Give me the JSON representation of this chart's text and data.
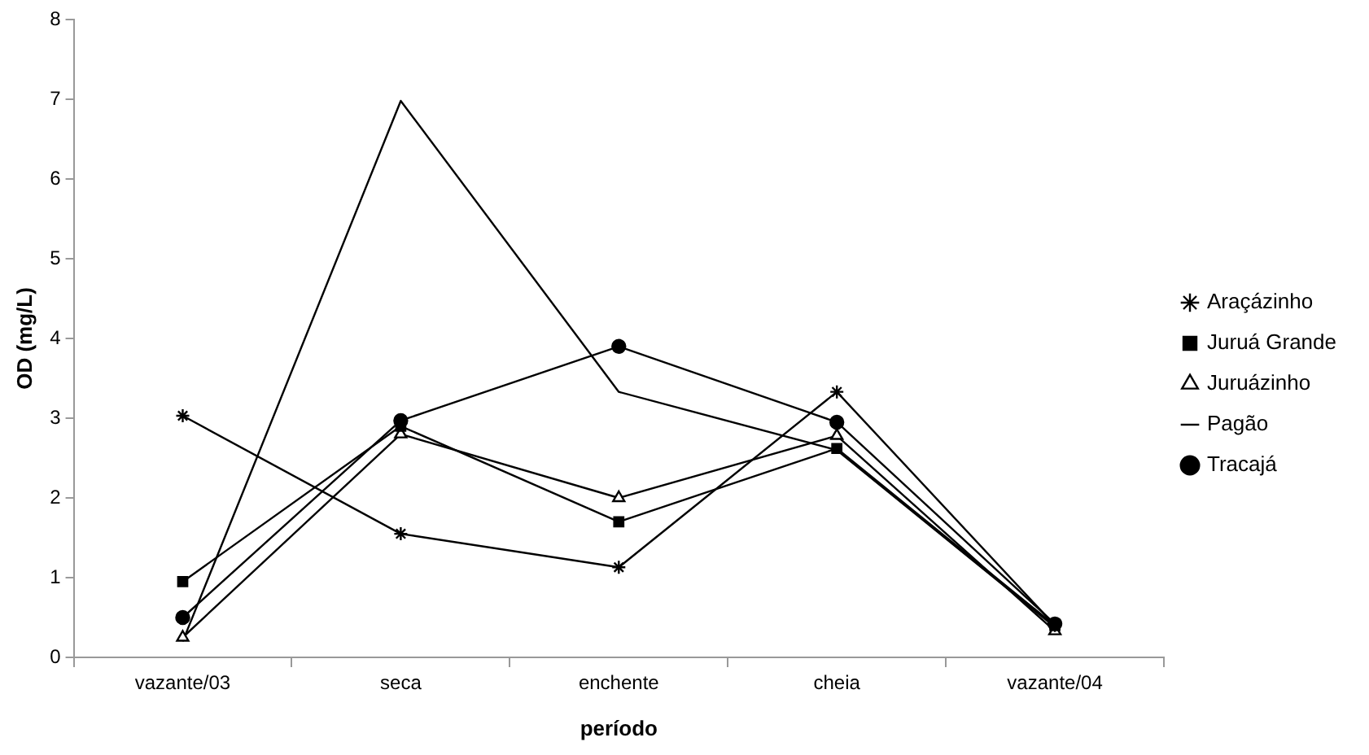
{
  "chart_data": {
    "type": "line",
    "xlabel": "período",
    "ylabel": "OD (mg/L)",
    "categories": [
      "vazante/03",
      "seca",
      "enchente",
      "cheia",
      "vazante/04"
    ],
    "ylim": [
      0,
      8
    ],
    "yticks": [
      0,
      1,
      2,
      3,
      4,
      5,
      6,
      7,
      8
    ],
    "grid": false,
    "legend": "right",
    "line_style": "solid",
    "series": [
      {
        "name": "Araçázinho",
        "color": "#000000",
        "marker": "cross",
        "values": [
          3.03,
          1.55,
          1.13,
          3.33,
          0.4
        ]
      },
      {
        "name": "Juruá Grande",
        "color": "#000000",
        "marker": "square",
        "values": [
          0.95,
          2.9,
          1.7,
          2.62,
          0.4
        ]
      },
      {
        "name": "Juruázinho",
        "color": "#000000",
        "marker": "triangle",
        "values": [
          0.25,
          2.8,
          2.0,
          2.78,
          0.33
        ]
      },
      {
        "name": "Pagão",
        "color": "#000000",
        "marker": "none",
        "values": [
          0.2,
          6.98,
          3.33,
          2.6,
          0.38
        ]
      },
      {
        "name": "Tracajá",
        "color": "#000000",
        "marker": "circle",
        "values": [
          0.5,
          2.97,
          3.9,
          2.95,
          0.42
        ]
      }
    ]
  }
}
